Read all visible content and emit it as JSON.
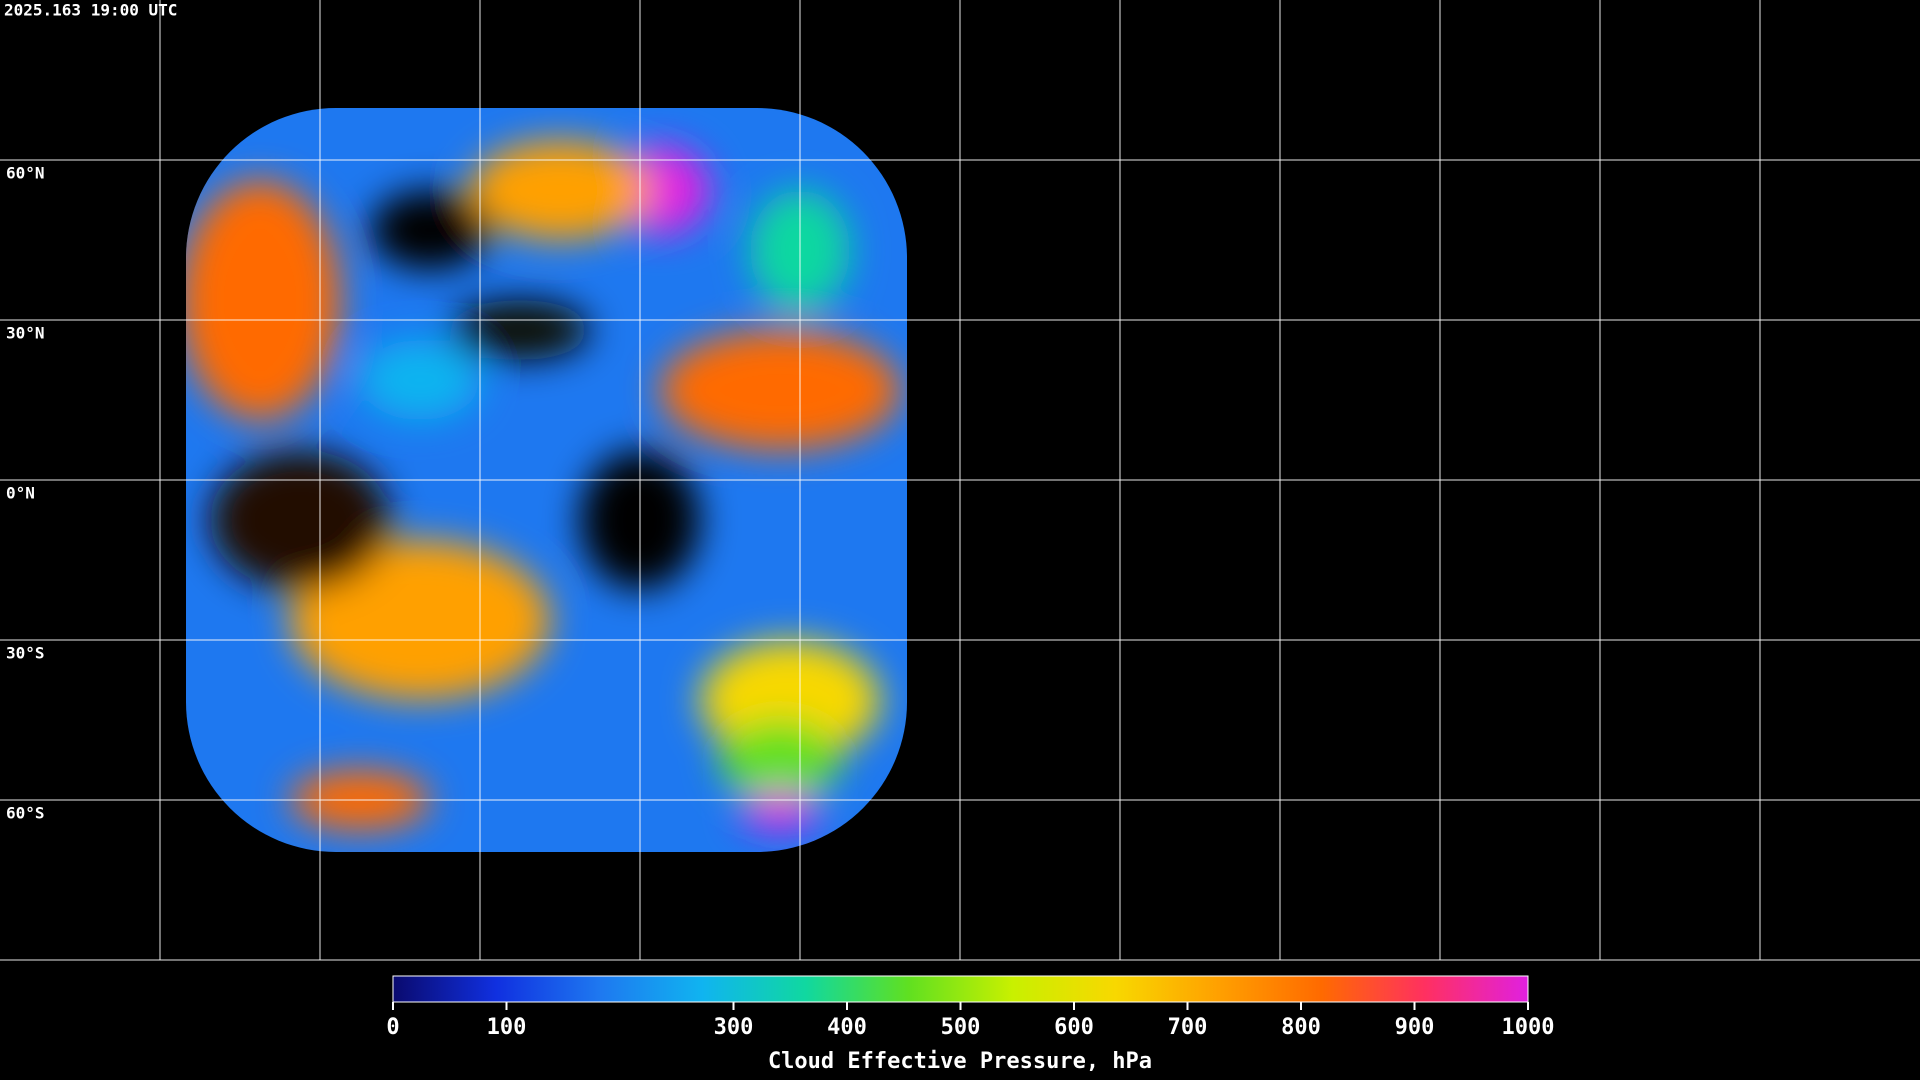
{
  "timestamp": "2025.163 19:00 UTC",
  "latitude_labels": [
    "60°N",
    "30°N",
    "0°N",
    "30°S",
    "60°S"
  ],
  "colorbar": {
    "title": "Cloud Effective Pressure, hPa",
    "range": [
      0,
      1000
    ],
    "ticks": [
      0,
      100,
      300,
      400,
      500,
      600,
      700,
      800,
      900,
      1000
    ],
    "colormap": [
      "#0a0a6e",
      "#1030e0",
      "#1e78f0",
      "#10b4f0",
      "#10d8a0",
      "#60e020",
      "#c8f000",
      "#f8d800",
      "#ffa000",
      "#ff6a00",
      "#ff3060",
      "#e020e0"
    ]
  }
}
